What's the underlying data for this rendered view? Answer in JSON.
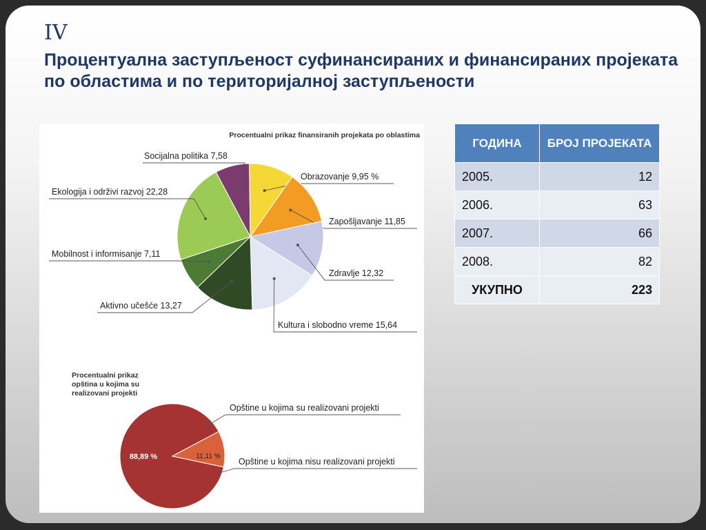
{
  "slide": {
    "roman": "IV",
    "heading": "Процентуална заступљеност суфинансираних и финансираних пројеката по областима и по територијалној заступљености"
  },
  "table": {
    "headers": [
      "ГОДИНА",
      "БРОЈ ПРОЈЕКАТА"
    ],
    "rows": [
      {
        "year": "2005.",
        "count": "12"
      },
      {
        "year": "2006.",
        "count": "63"
      },
      {
        "year": "2007.",
        "count": "66"
      },
      {
        "year": "2008.",
        "count": "82"
      }
    ],
    "total": {
      "label": "УКУПНО",
      "count": "223"
    }
  },
  "chart_data": [
    {
      "type": "pie",
      "title": "Procentualni prikaz finansiranih projekata po oblastima",
      "slices": [
        {
          "label": "Socijalna politika 7,58",
          "value": 7.58,
          "color": "#7b3b6e"
        },
        {
          "label": "Obrazovanje 9,95 %",
          "value": 9.95,
          "color": "#f5d835"
        },
        {
          "label": "Zapošljavanje 11,85",
          "value": 11.85,
          "color": "#f39c23"
        },
        {
          "label": "Zdravlje 12,32",
          "value": 12.32,
          "color": "#c6c9e6"
        },
        {
          "label": "Kultura i slobodno vreme 15,64",
          "value": 15.64,
          "color": "#e2e7f3"
        },
        {
          "label": "Aktivno učešće 13,27",
          "value": 13.27,
          "color": "#2f4a25"
        },
        {
          "label": "Mobilnost i informisanje 7,11",
          "value": 7.11,
          "color": "#4c7b36"
        },
        {
          "label": "Ekologija i održivi razvoj 22,28",
          "value": 22.28,
          "color": "#9ccb55"
        }
      ]
    },
    {
      "type": "pie",
      "title": "Procentualni prikaz opština u kojima su realizovani projekti",
      "slices": [
        {
          "label": "Opštine u kojima su realizovani projekti",
          "value": 88.89,
          "value_label": "88,89 %",
          "color": "#a53332"
        },
        {
          "label": "Opštine u kojima nisu realizovani projekti",
          "value": 11.11,
          "value_label": "11,11 %",
          "color": "#d9623a"
        }
      ]
    }
  ]
}
